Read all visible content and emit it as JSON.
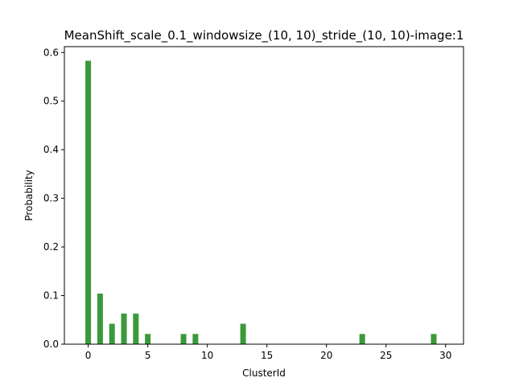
{
  "chart_data": {
    "type": "bar",
    "title": "MeanShift_scale_0.1_windowsize_(10, 10)_stride_(10, 10)-image:1",
    "xlabel": "ClusterId",
    "ylabel": "Probability",
    "x": [
      0,
      1,
      2,
      3,
      4,
      5,
      8,
      9,
      13,
      23,
      29
    ],
    "values": [
      0.583,
      0.104,
      0.042,
      0.063,
      0.063,
      0.021,
      0.021,
      0.021,
      0.042,
      0.021,
      0.021
    ],
    "xlim": [
      -2.0,
      31.5
    ],
    "ylim": [
      0,
      0.612
    ],
    "xticks": [
      0,
      5,
      10,
      15,
      20,
      25,
      30
    ],
    "yticks": [
      0.0,
      0.1,
      0.2,
      0.3,
      0.4,
      0.5,
      0.6
    ],
    "xtick_labels": [
      "0",
      "5",
      "10",
      "15",
      "20",
      "25",
      "30"
    ],
    "ytick_labels": [
      "0.0",
      "0.1",
      "0.2",
      "0.3",
      "0.4",
      "0.5",
      "0.6"
    ],
    "bar_color": "#3a9a3a",
    "grid": false,
    "legend": "none"
  }
}
